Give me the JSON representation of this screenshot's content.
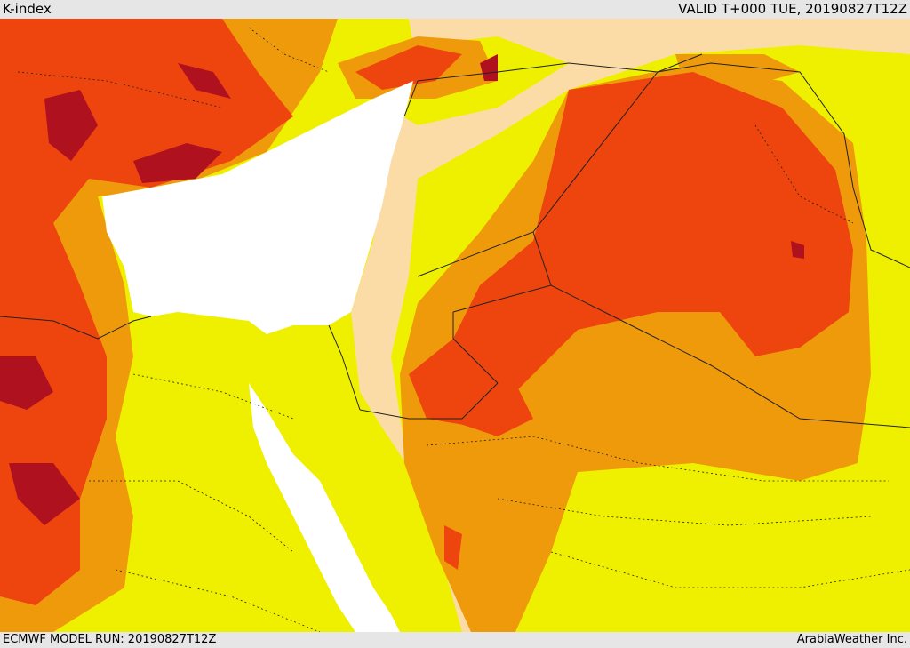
{
  "header": {
    "title": "K-index",
    "valid_time": "VALID T+000 TUE, 20190827T12Z"
  },
  "footer": {
    "model_run": "ECMWF MODEL RUN: 20190827T12Z",
    "credit": "ArabiaWeather Inc."
  },
  "colors": {
    "background_land": "#fcdca6",
    "sea": "#ffffff",
    "level_1": "#eef000",
    "level_2": "#ef9a0b",
    "level_3": "#ee440e",
    "level_4": "#b0111f",
    "border": "#222222",
    "bar": "#e6e6e6"
  }
}
